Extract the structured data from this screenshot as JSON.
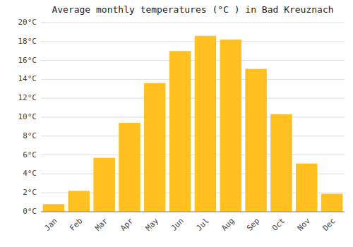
{
  "chart_data": {
    "type": "bar",
    "title": "Average monthly temperatures (°C ) in Bad Kreuznach",
    "categories": [
      "Jan",
      "Feb",
      "Mar",
      "Apr",
      "May",
      "Jun",
      "Jul",
      "Aug",
      "Sep",
      "Oct",
      "Nov",
      "Dec"
    ],
    "values": [
      0.8,
      2.2,
      5.7,
      9.4,
      13.6,
      17.0,
      18.6,
      18.2,
      15.1,
      10.3,
      5.1,
      1.9
    ],
    "color": "#FFC020",
    "ylim": [
      0,
      20
    ],
    "yticks": [
      {
        "value": 0,
        "label": "0°C"
      },
      {
        "value": 2,
        "label": "2°C"
      },
      {
        "value": 4,
        "label": "4°C"
      },
      {
        "value": 6,
        "label": "6°C"
      },
      {
        "value": 8,
        "label": "8°C"
      },
      {
        "value": 10,
        "label": "10°C"
      },
      {
        "value": 12,
        "label": "12°C"
      },
      {
        "value": 14,
        "label": "14°C"
      },
      {
        "value": 16,
        "label": "16°C"
      },
      {
        "value": 18,
        "label": "18°C"
      },
      {
        "value": 20,
        "label": "20°C"
      }
    ],
    "grid": true
  }
}
